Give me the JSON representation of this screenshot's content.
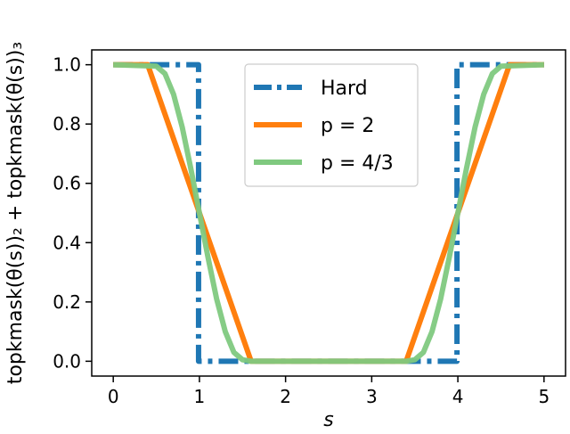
{
  "chart_data": {
    "type": "line",
    "xlabel": "s",
    "ylabel": "topkmask(θ(s))₂ + topkmask(θ(s))₃",
    "xlim": [
      -0.25,
      5.25
    ],
    "ylim": [
      -0.05,
      1.05
    ],
    "xticks": [
      "0",
      "1",
      "2",
      "3",
      "4",
      "5"
    ],
    "yticks": [
      "0.0",
      "0.2",
      "0.4",
      "0.6",
      "0.8",
      "1.0"
    ],
    "grid": false,
    "legend_position": "top-center",
    "series": [
      {
        "name": "Hard",
        "color": "#1f77b4",
        "style": "dashdot",
        "points": [
          [
            0,
            1
          ],
          [
            0.99,
            1
          ],
          [
            0.99,
            0
          ],
          [
            1.01,
            0
          ],
          [
            3.99,
            0
          ],
          [
            3.99,
            1
          ],
          [
            4.01,
            1
          ],
          [
            5,
            1
          ]
        ]
      },
      {
        "name": "p = 2",
        "color": "#ff7f0e",
        "style": "solid",
        "points": [
          [
            0,
            1
          ],
          [
            0.4,
            1
          ],
          [
            1.6,
            0
          ],
          [
            3.4,
            0
          ],
          [
            4.6,
            1
          ],
          [
            5,
            1
          ]
        ]
      },
      {
        "name": "p = 4/3",
        "color": "#7fc97f",
        "style": "solid",
        "points": [
          [
            0,
            1
          ],
          [
            0.5,
            0.995
          ],
          [
            0.6,
            0.97
          ],
          [
            0.7,
            0.9
          ],
          [
            0.8,
            0.79
          ],
          [
            0.9,
            0.65
          ],
          [
            1.0,
            0.5
          ],
          [
            1.1,
            0.35
          ],
          [
            1.2,
            0.21
          ],
          [
            1.3,
            0.1
          ],
          [
            1.4,
            0.03
          ],
          [
            1.5,
            0.005
          ],
          [
            1.6,
            0
          ],
          [
            3.4,
            0
          ],
          [
            3.5,
            0.005
          ],
          [
            3.6,
            0.03
          ],
          [
            3.7,
            0.1
          ],
          [
            3.8,
            0.21
          ],
          [
            3.9,
            0.35
          ],
          [
            4.0,
            0.5
          ],
          [
            4.1,
            0.65
          ],
          [
            4.2,
            0.79
          ],
          [
            4.3,
            0.9
          ],
          [
            4.4,
            0.97
          ],
          [
            4.5,
            0.995
          ],
          [
            5,
            1
          ]
        ]
      }
    ]
  }
}
